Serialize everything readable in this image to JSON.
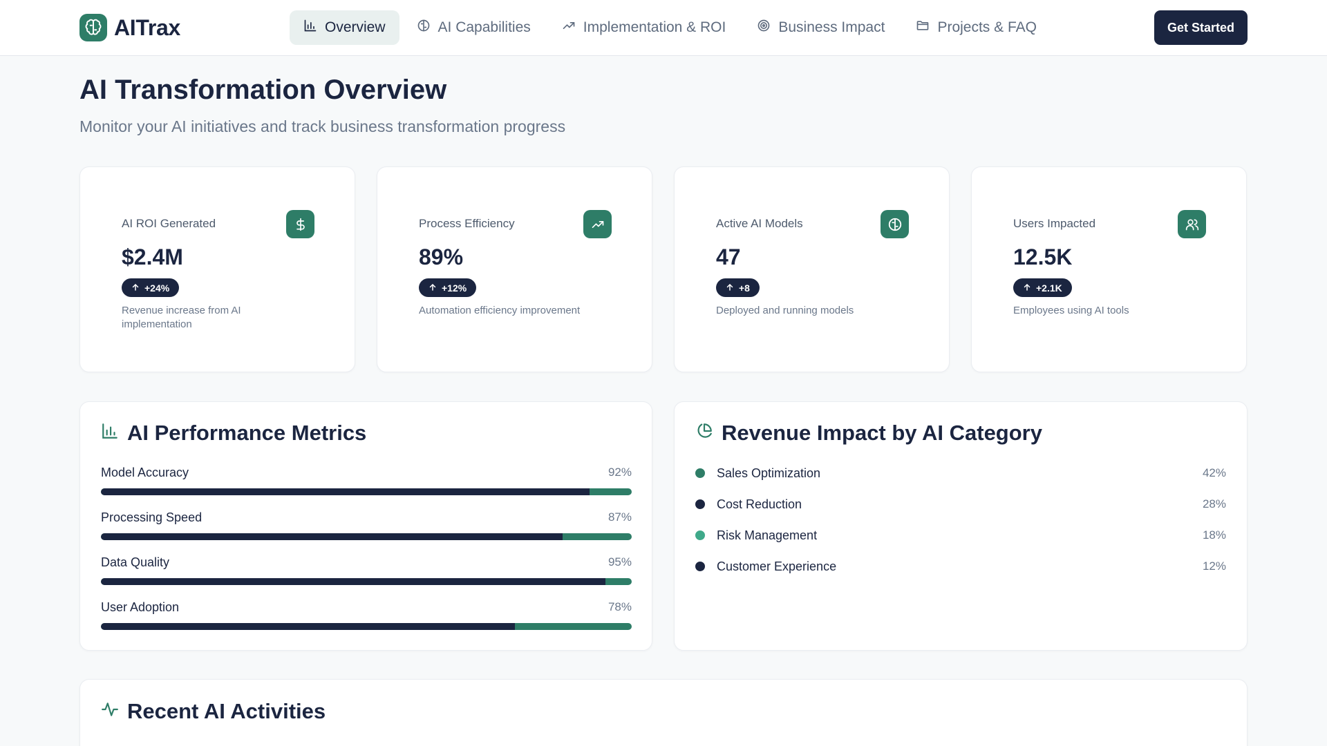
{
  "brand": {
    "name": "AITrax",
    "logo_icon": "brain-icon",
    "accent": "#2e7d67"
  },
  "nav": {
    "items": [
      {
        "label": "Overview",
        "icon": "bar-chart-icon",
        "active": true
      },
      {
        "label": "AI Capabilities",
        "icon": "brain-icon",
        "active": false
      },
      {
        "label": "Implementation & ROI",
        "icon": "trending-up-icon",
        "active": false
      },
      {
        "label": "Business Impact",
        "icon": "target-icon",
        "active": false
      },
      {
        "label": "Projects & FAQ",
        "icon": "folder-icon",
        "active": false
      }
    ],
    "cta_label": "Get Started"
  },
  "page": {
    "title": "AI Transformation Overview",
    "subtitle": "Monitor your AI initiatives and track business transformation progress"
  },
  "kpis": [
    {
      "label": "AI ROI Generated",
      "value": "$2.4M",
      "change": "+24%",
      "description": "Revenue increase from AI implementation",
      "icon": "dollar-icon"
    },
    {
      "label": "Process Efficiency",
      "value": "89%",
      "change": "+12%",
      "description": "Automation efficiency improvement",
      "icon": "trending-up-icon"
    },
    {
      "label": "Active AI Models",
      "value": "47",
      "change": "+8",
      "description": "Deployed and running models",
      "icon": "brain-icon"
    },
    {
      "label": "Users Impacted",
      "value": "12.5K",
      "change": "+2.1K",
      "description": "Employees using AI tools",
      "icon": "users-icon"
    }
  ],
  "performance": {
    "title": "AI Performance Metrics",
    "icon": "bar-chart-icon",
    "metrics": [
      {
        "name": "Model Accuracy",
        "value_label": "92%",
        "value": 92
      },
      {
        "name": "Processing Speed",
        "value_label": "87%",
        "value": 87
      },
      {
        "name": "Data Quality",
        "value_label": "95%",
        "value": 95
      },
      {
        "name": "User Adoption",
        "value_label": "78%",
        "value": 78
      }
    ]
  },
  "revenue": {
    "title": "Revenue Impact by AI Category",
    "icon": "pie-chart-icon",
    "categories": [
      {
        "name": "Sales Optimization",
        "value_label": "42%",
        "color": "#2e7d67"
      },
      {
        "name": "Cost Reduction",
        "value_label": "28%",
        "color": "#1b2540"
      },
      {
        "name": "Risk Management",
        "value_label": "18%",
        "color": "#3fa98a"
      },
      {
        "name": "Customer Experience",
        "value_label": "12%",
        "color": "#1b2540"
      }
    ]
  },
  "activity": {
    "title": "Recent AI Activities",
    "icon": "activity-icon"
  },
  "colors": {
    "navy": "#1b2540",
    "green": "#2e7d67",
    "muted": "#6a778a"
  }
}
